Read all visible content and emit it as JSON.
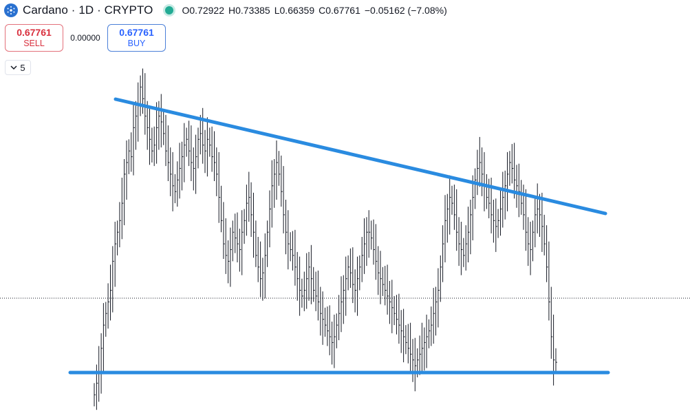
{
  "header": {
    "symbol_title": "Cardano · 1D · CRYPTO",
    "ohlc": [
      {
        "key": "O",
        "value": "0.72922"
      },
      {
        "key": "H",
        "value": "0.73385"
      },
      {
        "key": "L",
        "value": "0.66359"
      },
      {
        "key": "C",
        "value": "0.67761"
      }
    ],
    "change": "−0.05162 (−7.08%)",
    "status_color": "#22ab94",
    "logo_icon": "cardano-logo-icon"
  },
  "trade": {
    "sell_price": "0.67761",
    "sell_label": "SELL",
    "spread": "0.00000",
    "buy_price": "0.67761",
    "buy_label": "BUY"
  },
  "indicator_toggle": {
    "icon": "chevron-down-icon",
    "count": "5"
  },
  "chart_data": {
    "type": "ohlc-bar",
    "bar_color": "#131722",
    "drawing_color": "#2a8be0",
    "price_line_style": "dotted",
    "series": [
      0.62,
      0.64,
      0.66,
      0.7,
      0.74,
      0.76,
      0.78,
      0.8,
      0.85,
      0.88,
      0.9,
      0.92,
      0.95,
      1.0,
      1.02,
      1.04,
      1.03,
      1.08,
      1.1,
      1.12,
      1.15,
      1.13,
      1.1,
      1.08,
      1.06,
      1.04,
      1.05,
      1.08,
      1.1,
      1.09,
      1.07,
      1.04,
      1.02,
      1.0,
      0.98,
      0.97,
      0.99,
      1.01,
      1.03,
      1.05,
      1.06,
      1.04,
      1.02,
      1.01,
      1.03,
      1.06,
      1.07,
      1.05,
      1.04,
      1.06,
      1.05,
      1.03,
      1.02,
      1.0,
      0.96,
      0.92,
      0.88,
      0.86,
      0.85,
      0.87,
      0.9,
      0.89,
      0.88,
      0.87,
      0.9,
      0.92,
      0.95,
      0.96,
      0.93,
      0.9,
      0.86,
      0.84,
      0.82,
      0.83,
      0.86,
      0.9,
      0.94,
      0.98,
      1.0,
      1.02,
      1.0,
      0.97,
      0.93,
      0.9,
      0.88,
      0.87,
      0.86,
      0.84,
      0.82,
      0.8,
      0.79,
      0.8,
      0.82,
      0.84,
      0.82,
      0.8,
      0.79,
      0.78,
      0.76,
      0.75,
      0.74,
      0.73,
      0.72,
      0.71,
      0.72,
      0.74,
      0.76,
      0.78,
      0.8,
      0.82,
      0.84,
      0.83,
      0.81,
      0.8,
      0.82,
      0.84,
      0.86,
      0.88,
      0.9,
      0.9,
      0.89,
      0.87,
      0.85,
      0.83,
      0.82,
      0.81,
      0.8,
      0.79,
      0.78,
      0.77,
      0.76,
      0.75,
      0.74,
      0.73,
      0.72,
      0.71,
      0.7,
      0.69,
      0.68,
      0.67,
      0.68,
      0.69,
      0.7,
      0.71,
      0.72,
      0.73,
      0.74,
      0.76,
      0.78,
      0.8,
      0.84,
      0.88,
      0.92,
      0.94,
      0.96,
      0.95,
      0.93,
      0.9,
      0.88,
      0.87,
      0.86,
      0.88,
      0.9,
      0.93,
      0.96,
      0.99,
      1.01,
      1.02,
      1.0,
      0.98,
      0.96,
      0.95,
      0.93,
      0.92,
      0.91,
      0.92,
      0.94,
      0.96,
      0.98,
      1.0,
      1.02,
      1.01,
      0.99,
      0.98,
      0.97,
      0.95,
      0.93,
      0.9,
      0.88,
      0.87,
      0.9,
      0.93,
      0.94,
      0.93,
      0.91,
      0.88,
      0.84,
      0.78,
      0.72,
      0.68,
      0.676
    ]
  }
}
